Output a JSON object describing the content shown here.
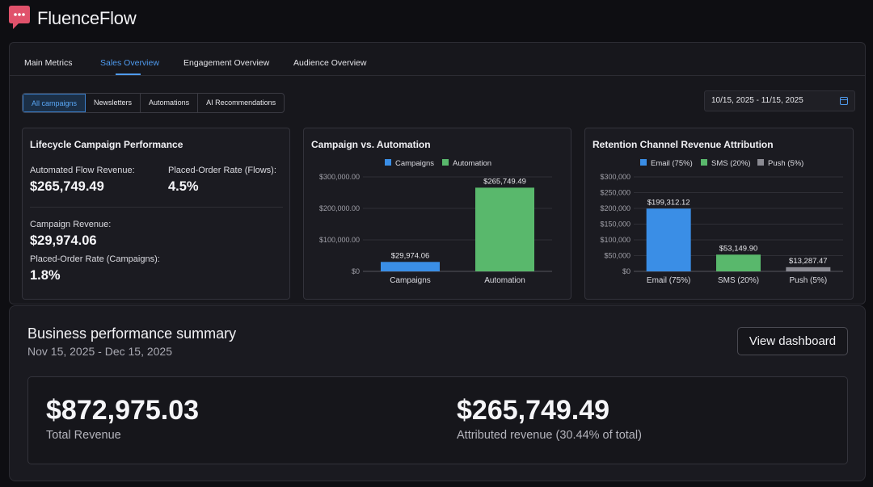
{
  "app": {
    "title": "FluenceFlow",
    "logo_icon": "chat-bubble-icon",
    "brand_color": "#e0526b"
  },
  "tabs": [
    {
      "label": "Main Metrics",
      "active": false
    },
    {
      "label": "Sales Overview",
      "active": true
    },
    {
      "label": "Engagement Overview",
      "active": false
    },
    {
      "label": "Audience Overview",
      "active": false
    }
  ],
  "filters": [
    {
      "label": "All campaigns",
      "active": true
    },
    {
      "label": "Newsletters",
      "active": false
    },
    {
      "label": "Automations",
      "active": false
    },
    {
      "label": "AI Recommendations",
      "active": false
    }
  ],
  "date_range": {
    "value": "10/15, 2025 - 11/15, 2025",
    "icon": "calendar-icon"
  },
  "lifecycle": {
    "title": "Lifecycle Campaign Performance",
    "automated_flow_revenue_label": "Automated Flow Revenue:",
    "automated_flow_revenue": "$265,749.49",
    "placed_order_rate_flows_label": "Placed-Order Rate (Flows):",
    "placed_order_rate_flows": "4.5%",
    "campaign_revenue_label": "Campaign Revenue:",
    "campaign_revenue": "$29,974.06",
    "placed_order_rate_campaigns_label": "Placed-Order Rate (Campaigns):",
    "placed_order_rate_campaigns": "1.8%"
  },
  "chart_data": [
    {
      "type": "bar",
      "title": "Campaign vs. Automation",
      "categories": [
        "Campaigns",
        "Automation"
      ],
      "values": [
        29974.06,
        265749.49
      ],
      "value_labels": [
        "$29,974.06",
        "$265,749.49"
      ],
      "legend": [
        {
          "name": "Campaigns",
          "color": "#3a8ee6"
        },
        {
          "name": "Automation",
          "color": "#59b86c"
        }
      ],
      "colors": [
        "#3a8ee6",
        "#59b86c"
      ],
      "yticks": [
        0,
        100000,
        200000,
        300000
      ],
      "ytick_labels": [
        "$0",
        "$100,000.00",
        "$200,000.00",
        "$300,000.00"
      ],
      "ylim": [
        0,
        300000
      ],
      "grid": true,
      "legend_position": "top"
    },
    {
      "type": "bar",
      "title": "Retention Channel Revenue Attribution",
      "categories": [
        "Email (75%)",
        "SMS (20%)",
        "Push (5%)"
      ],
      "values": [
        199312.12,
        53149.9,
        13287.47
      ],
      "value_labels": [
        "$199,312.12",
        "$53,149.90",
        "$13,287.47"
      ],
      "legend": [
        {
          "name": "Email (75%)",
          "color": "#3a8ee6"
        },
        {
          "name": "SMS (20%)",
          "color": "#59b86c"
        },
        {
          "name": "Push (5%)",
          "color": "#8a8a92"
        }
      ],
      "colors": [
        "#3a8ee6",
        "#59b86c",
        "#8a8a92"
      ],
      "yticks": [
        0,
        50000,
        100000,
        150000,
        200000,
        250000,
        300000
      ],
      "ytick_labels": [
        "$0",
        "$50,000",
        "$100,000",
        "$150,000",
        "$200,000",
        "$250,000",
        "$300,000"
      ],
      "ylim": [
        0,
        300000
      ],
      "grid": true,
      "legend_position": "top"
    }
  ],
  "summary": {
    "title": "Business performance summary",
    "dates": "Nov 15, 2025 - Dec 15, 2025",
    "view_button": "View dashboard",
    "total_revenue": "$872,975.03",
    "total_revenue_label": "Total Revenue",
    "attributed_revenue": "$265,749.49",
    "attributed_revenue_label": "Attributed revenue (30.44% of total)"
  }
}
